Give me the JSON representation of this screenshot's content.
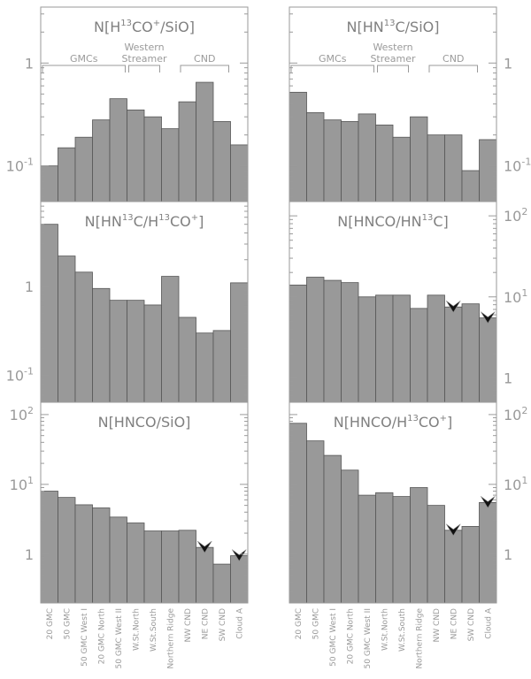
{
  "chart_data": [
    {
      "type": "bar",
      "title_parts": [
        "N[H",
        "13",
        "CO",
        "+",
        "/SiO]"
      ],
      "categories": [
        "20 GMC",
        "50 GMC",
        "50 GMC West I",
        "20 GMC North",
        "50 GMC West II",
        "W.St.North",
        "W.St.South",
        "Northern Ridge",
        "NW CND",
        "NE CND",
        "SW CND",
        "Cloud A"
      ],
      "values": [
        0.1,
        0.15,
        0.19,
        0.28,
        0.45,
        0.35,
        0.3,
        0.23,
        0.42,
        0.65,
        0.27,
        0.16
      ],
      "upper_limits": [],
      "yscale": "log",
      "ylim": [
        0.045,
        3.5
      ],
      "yticks": [
        {
          "value": 0.1,
          "base": "10",
          "exp": "-1"
        },
        {
          "value": 1,
          "base": "1",
          "exp": ""
        }
      ],
      "ytick_side": "left",
      "groups": [
        {
          "label": [
            "GMCs"
          ],
          "from": 0,
          "to": 4
        },
        {
          "label": [
            "Western",
            "Streamer"
          ],
          "from": 5,
          "to": 6
        },
        {
          "label": [
            "CND"
          ],
          "from": 8,
          "to": 10
        }
      ]
    },
    {
      "type": "bar",
      "title_parts": [
        "N[HN",
        "13",
        "C/SiO]",
        "",
        ""
      ],
      "categories": [
        "20 GMC",
        "50 GMC",
        "50 GMC West I",
        "20 GMC North",
        "50 GMC West II",
        "W.St.North",
        "W.St.South",
        "Northern Ridge",
        "NW CND",
        "NE CND",
        "SW CND",
        "Cloud A"
      ],
      "values": [
        0.52,
        0.33,
        0.28,
        0.27,
        0.32,
        0.25,
        0.19,
        0.3,
        0.2,
        0.2,
        0.09,
        0.18
      ],
      "upper_limits": [],
      "yscale": "log",
      "ylim": [
        0.045,
        3.5
      ],
      "yticks": [
        {
          "value": 0.1,
          "base": "10",
          "exp": "-1"
        },
        {
          "value": 1,
          "base": "1",
          "exp": ""
        }
      ],
      "ytick_side": "right",
      "groups": [
        {
          "label": [
            "GMCs"
          ],
          "from": 0,
          "to": 4
        },
        {
          "label": [
            "Western",
            "Streamer"
          ],
          "from": 5,
          "to": 6
        },
        {
          "label": [
            "CND"
          ],
          "from": 8,
          "to": 10
        }
      ]
    },
    {
      "type": "bar",
      "title_parts": [
        "N[HN",
        "13",
        "C/H",
        "13",
        "CO",
        "+",
        "]"
      ],
      "categories": [
        "20 GMC",
        "50 GMC",
        "50 GMC West I",
        "20 GMC North",
        "50 GMC West II",
        "W.St.North",
        "W.St.South",
        "Northern Ridge",
        "NW CND",
        "NE CND",
        "SW CND",
        "Cloud A"
      ],
      "values": [
        5.0,
        2.2,
        1.45,
        0.95,
        0.7,
        0.7,
        0.62,
        1.3,
        0.45,
        0.3,
        0.32,
        1.1
      ],
      "upper_limits": [],
      "yscale": "log",
      "ylim": [
        0.05,
        9
      ],
      "yticks": [
        {
          "value": 0.1,
          "base": "10",
          "exp": "-1"
        },
        {
          "value": 1,
          "base": "1",
          "exp": ""
        }
      ],
      "ytick_side": "left",
      "groups": []
    },
    {
      "type": "bar",
      "title_parts": [
        "N[HNCO/HN",
        "13",
        "C]"
      ],
      "categories": [
        "20 GMC",
        "50 GMC",
        "50 GMC West I",
        "20 GMC North",
        "50 GMC West II",
        "W.St.North",
        "W.St.South",
        "Northern Ridge",
        "NW CND",
        "NE CND",
        "SW CND",
        "Cloud A"
      ],
      "values": [
        14,
        17.5,
        16,
        15,
        10,
        10.5,
        10.5,
        7.2,
        10.5,
        7.5,
        8.2,
        5.5
      ],
      "upper_limits": [
        9,
        11
      ],
      "yscale": "log",
      "ylim": [
        0.5,
        150
      ],
      "yticks": [
        {
          "value": 1,
          "base": "1",
          "exp": ""
        },
        {
          "value": 10,
          "base": "10",
          "exp": "1"
        },
        {
          "value": 100,
          "base": "10",
          "exp": "2"
        }
      ],
      "ytick_side": "right",
      "groups": []
    },
    {
      "type": "bar",
      "title_parts": [
        "N[HNCO/SiO]"
      ],
      "categories": [
        "20 GMC",
        "50 GMC",
        "50 GMC West I",
        "20 GMC North",
        "50 GMC West II",
        "W.St.North",
        "W.St.South",
        "Northern Ridge",
        "NW CND",
        "NE CND",
        "SW CND",
        "Cloud A"
      ],
      "values": [
        8.0,
        6.5,
        5.1,
        4.6,
        3.4,
        2.8,
        2.15,
        2.15,
        2.2,
        1.25,
        0.72,
        0.95
      ],
      "upper_limits": [
        9,
        11
      ],
      "yscale": "log",
      "ylim": [
        0.2,
        150
      ],
      "yticks": [
        {
          "value": 1,
          "base": "1",
          "exp": ""
        },
        {
          "value": 10,
          "base": "10",
          "exp": "1"
        },
        {
          "value": 100,
          "base": "10",
          "exp": "2"
        }
      ],
      "ytick_side": "left",
      "groups": []
    },
    {
      "type": "bar",
      "title_parts": [
        "N[HNCO/H",
        "13",
        "CO",
        "+",
        "]"
      ],
      "categories": [
        "20 GMC",
        "50 GMC",
        "50 GMC West I",
        "20 GMC North",
        "50 GMC West II",
        "W.St.North",
        "W.St.South",
        "Northern Ridge",
        "NW CND",
        "NE CND",
        "SW CND",
        "Cloud A"
      ],
      "values": [
        75,
        42,
        26,
        16,
        7.0,
        7.6,
        6.7,
        9.0,
        5.0,
        2.2,
        2.5,
        5.5
      ],
      "upper_limits": [
        9,
        11
      ],
      "yscale": "log",
      "ylim": [
        0.2,
        150
      ],
      "yticks": [
        {
          "value": 1,
          "base": "1",
          "exp": ""
        },
        {
          "value": 10,
          "base": "10",
          "exp": "1"
        },
        {
          "value": 100,
          "base": "10",
          "exp": "2"
        }
      ],
      "ytick_side": "right",
      "groups": []
    }
  ]
}
